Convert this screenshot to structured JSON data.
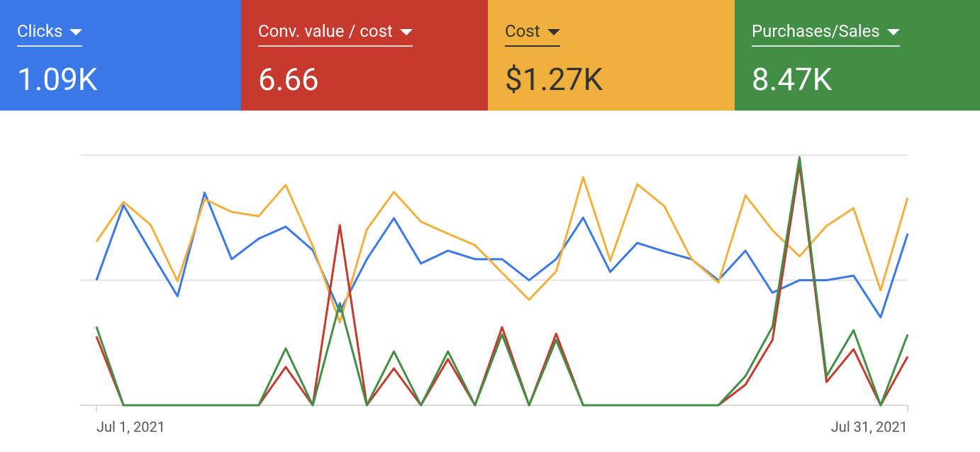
{
  "chart_data": {
    "type": "line",
    "categories": [
      "Jul 1, 2021",
      null,
      null,
      null,
      null,
      null,
      null,
      null,
      null,
      null,
      null,
      null,
      null,
      null,
      null,
      null,
      null,
      null,
      null,
      null,
      null,
      null,
      null,
      null,
      null,
      null,
      null,
      null,
      null,
      null,
      "Jul 31, 2021"
    ],
    "ylim": [
      0,
      100
    ],
    "yticks": [
      0,
      50,
      100
    ],
    "grid": true,
    "series": [
      {
        "name": "Clicks",
        "total": "1.09K",
        "color": "#3b78e7",
        "values": [
          50,
          80,
          61.5,
          43.6,
          85,
          58.4,
          66.6,
          71.4,
          62,
          37.4,
          58.4,
          74.8,
          56.7,
          61.8,
          58.4,
          58.4,
          50,
          58.4,
          75,
          53.3,
          64.9,
          61.5,
          58.4,
          50,
          61.8,
          45,
          50,
          50,
          51.8,
          35.1,
          68.6
        ]
      },
      {
        "name": "Conv. value / cost",
        "total": "6.66",
        "color": "#c5392e",
        "values": [
          27.5,
          0,
          0,
          0,
          0,
          0,
          0,
          15.3,
          0,
          72,
          0,
          14.7,
          0,
          18.4,
          0,
          31.2,
          0,
          28.6,
          0,
          0,
          0,
          0,
          0,
          0,
          8.2,
          26.1,
          96.3,
          9.3,
          22.4,
          0,
          19.5
        ]
      },
      {
        "name": "Cost",
        "total": "$1.27K",
        "color": "#f0b03e",
        "values": [
          65.4,
          81.3,
          72.2,
          49.6,
          82.4,
          77.3,
          75.6,
          88.1,
          63.7,
          33.1,
          70.3,
          85.3,
          73.4,
          68.6,
          64,
          53,
          42.2,
          53.5,
          91.2,
          57.8,
          88.4,
          79.6,
          58.6,
          49,
          83.9,
          70,
          59.5,
          71.7,
          78.8,
          45.9,
          83
        ]
      },
      {
        "name": "Purchases/Sales",
        "total": "8.47K",
        "color": "#438e47",
        "values": [
          31.4,
          0,
          0,
          0,
          0,
          0,
          0,
          22.7,
          0,
          40.8,
          0,
          21.5,
          0,
          21.5,
          0,
          28.3,
          0,
          26.1,
          0,
          0,
          0,
          0,
          0,
          0,
          11.6,
          31.4,
          99.2,
          11.6,
          30,
          0,
          28.3
        ]
      }
    ]
  }
}
